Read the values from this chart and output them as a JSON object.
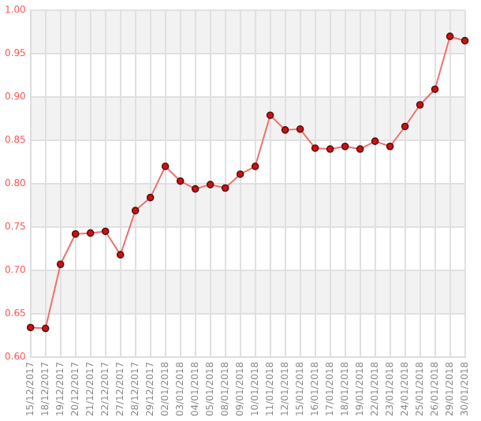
{
  "chart_data": {
    "type": "line",
    "categories": [
      "15/12/2017",
      "18/12/2017",
      "19/12/2017",
      "20/12/2017",
      "21/12/2017",
      "22/12/2017",
      "27/12/2017",
      "28/12/2017",
      "29/12/2017",
      "02/01/2018",
      "03/01/2018",
      "04/01/2018",
      "05/01/2018",
      "08/01/2018",
      "09/01/2018",
      "10/01/2018",
      "11/01/2018",
      "12/01/2018",
      "15/01/2018",
      "16/01/2018",
      "17/01/2018",
      "18/01/2018",
      "19/01/2018",
      "22/01/2018",
      "23/01/2018",
      "24/01/2018",
      "25/01/2018",
      "26/01/2018",
      "29/01/2018",
      "30/01/2018"
    ],
    "series": [
      {
        "color": "#f07070",
        "values": [
          0.634,
          0.633,
          0.707,
          0.742,
          0.743,
          0.745,
          0.718,
          0.769,
          0.784,
          0.82,
          0.803,
          0.794,
          0.799,
          0.795,
          0.811,
          0.82,
          0.879,
          0.862,
          0.863,
          0.841,
          0.84,
          0.843,
          0.84,
          0.849,
          0.843,
          0.866,
          0.891,
          0.909,
          0.97,
          0.965
        ]
      }
    ],
    "ylim": [
      0.6,
      1.0
    ],
    "yticks": [
      {
        "value": 0.6,
        "label": "0.60"
      },
      {
        "value": 0.65,
        "label": "0.65"
      },
      {
        "value": 0.7,
        "label": "0.70"
      },
      {
        "value": 0.75,
        "label": "0.75"
      },
      {
        "value": 0.8,
        "label": "0.80"
      },
      {
        "value": 0.85,
        "label": "0.85"
      },
      {
        "value": 0.9,
        "label": "0.90"
      },
      {
        "value": 0.95,
        "label": "0.95"
      },
      {
        "value": 1.0,
        "label": "1.00"
      }
    ],
    "grid": true,
    "marker": "circle",
    "line_style": "solid",
    "legend": false
  }
}
